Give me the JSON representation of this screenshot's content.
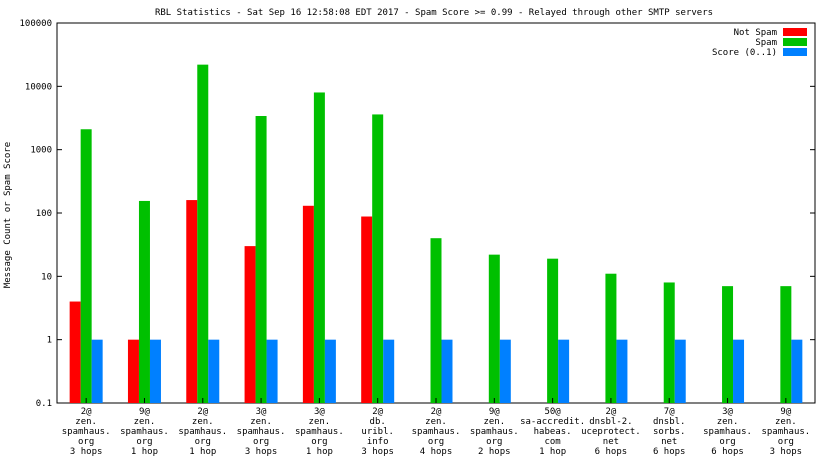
{
  "chart_data": {
    "type": "bar",
    "title": "RBL Statistics - Sat Sep 16 12:58:08 EDT 2017 - Spam Score >= 0.99 - Relayed through other SMTP servers",
    "ylabel": "Message Count or Spam Score",
    "xlabel": "",
    "yscale": "log",
    "ylim": [
      0.1,
      100000
    ],
    "y_ticks": [
      "0.1",
      "1",
      "10",
      "100",
      "1000",
      "10000",
      "100000"
    ],
    "legend_position": "top-right",
    "grid": false,
    "categories": [
      [
        "2@",
        "zen.",
        "spamhaus.",
        "org",
        "3 hops"
      ],
      [
        "9@",
        "zen.",
        "spamhaus.",
        "org",
        "1 hop"
      ],
      [
        "2@",
        "zen.",
        "spamhaus.",
        "org",
        "1 hop"
      ],
      [
        "3@",
        "zen.",
        "spamhaus.",
        "org",
        "3 hops"
      ],
      [
        "3@",
        "zen.",
        "spamhaus.",
        "org",
        "1 hop"
      ],
      [
        "2@",
        "db.",
        "uribl.",
        "info",
        "3 hops"
      ],
      [
        "2@",
        "zen.",
        "spamhaus.",
        "org",
        "4 hops"
      ],
      [
        "9@",
        "zen.",
        "spamhaus.",
        "org",
        "2 hops"
      ],
      [
        "50@",
        "sa-accredit.",
        "habeas.",
        "com",
        "1 hop"
      ],
      [
        "2@",
        "dnsbl-2.",
        "uceprotect.",
        "net",
        "6 hops"
      ],
      [
        "7@",
        "dnsbl.",
        "sorbs.",
        "net",
        "6 hops"
      ],
      [
        "3@",
        "zen.",
        "spamhaus.",
        "org",
        "6 hops"
      ],
      [
        "9@",
        "zen.",
        "spamhaus.",
        "org",
        "3 hops"
      ]
    ],
    "series": [
      {
        "name": "Not Spam",
        "color": "#ff0000",
        "values": [
          4,
          1,
          160,
          30,
          130,
          88,
          null,
          null,
          null,
          null,
          null,
          null,
          null
        ]
      },
      {
        "name": "Spam",
        "color": "#00c000",
        "values": [
          2100,
          155,
          22000,
          3400,
          8000,
          3600,
          40,
          22,
          19,
          11,
          8,
          7,
          7
        ]
      },
      {
        "name": "Score (0..1)",
        "color": "#0080ff",
        "values": [
          1,
          1,
          1,
          1,
          1,
          1,
          1,
          1,
          1,
          1,
          1,
          1,
          1
        ]
      }
    ]
  }
}
